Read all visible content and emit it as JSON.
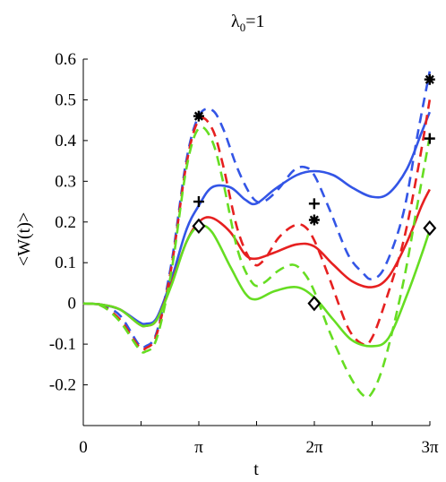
{
  "chart_data": {
    "type": "line",
    "title_symbol": "λ",
    "title_sub": "0",
    "title_rest": "=1",
    "xlabel": "t",
    "ylabel": "<W(t)>",
    "xlim": [
      0,
      9.42478
    ],
    "ylim": [
      -0.3,
      0.6
    ],
    "x_ticks": [
      {
        "value": 0,
        "label": "0"
      },
      {
        "value": 3.14159,
        "label": "π"
      },
      {
        "value": 6.28319,
        "label": "2π"
      },
      {
        "value": 9.42478,
        "label": "3π"
      }
    ],
    "x_minor_ticks": [
      1.5708,
      4.7124,
      7.854
    ],
    "y_ticks": [
      -0.2,
      -0.1,
      0,
      0.1,
      0.2,
      0.3,
      0.4,
      0.5,
      0.6
    ],
    "y_tick_labels": [
      "-0.2",
      "-0.1",
      "0",
      "0.1",
      "0.2",
      "0.3",
      "0.4",
      "0.5",
      "0.6"
    ],
    "grid": false,
    "series": [
      {
        "color": "#3355e6",
        "style": "solid",
        "x": [
          0,
          0.5,
          1.0,
          1.5,
          1.7,
          2.0,
          2.4,
          2.8,
          3.14,
          3.5,
          4.0,
          4.4,
          4.7,
          5.2,
          5.8,
          6.28,
          6.8,
          7.3,
          7.85,
          8.3,
          8.8,
          9.2,
          9.42
        ],
        "y": [
          0,
          -0.003,
          -0.015,
          -0.045,
          -0.05,
          -0.035,
          0.06,
          0.18,
          0.24,
          0.285,
          0.285,
          0.255,
          0.245,
          0.28,
          0.315,
          0.325,
          0.315,
          0.285,
          0.262,
          0.27,
          0.33,
          0.42,
          0.47
        ]
      },
      {
        "color": "#3355e6",
        "style": "dashed",
        "x": [
          0,
          0.5,
          1.0,
          1.5,
          1.7,
          2.0,
          2.4,
          2.8,
          3.14,
          3.5,
          3.8,
          4.2,
          4.6,
          4.9,
          5.3,
          5.7,
          6.0,
          6.28,
          6.7,
          7.2,
          7.6,
          7.85,
          8.2,
          8.7,
          9.1,
          9.42
        ],
        "y": [
          0,
          -0.005,
          -0.03,
          -0.1,
          -0.105,
          -0.07,
          0.1,
          0.35,
          0.46,
          0.475,
          0.43,
          0.33,
          0.26,
          0.25,
          0.28,
          0.325,
          0.335,
          0.315,
          0.23,
          0.12,
          0.075,
          0.06,
          0.09,
          0.22,
          0.42,
          0.57
        ]
      },
      {
        "color": "#e62020",
        "style": "solid",
        "x": [
          0,
          0.5,
          1.0,
          1.5,
          1.7,
          2.0,
          2.4,
          2.8,
          3.14,
          3.5,
          4.0,
          4.4,
          4.7,
          5.2,
          5.8,
          6.28,
          6.8,
          7.3,
          7.85,
          8.3,
          8.8,
          9.2,
          9.42
        ],
        "y": [
          0,
          -0.003,
          -0.015,
          -0.05,
          -0.055,
          -0.04,
          0.05,
          0.15,
          0.2,
          0.21,
          0.175,
          0.12,
          0.11,
          0.125,
          0.145,
          0.14,
          0.095,
          0.055,
          0.04,
          0.065,
          0.15,
          0.24,
          0.28
        ]
      },
      {
        "color": "#e62020",
        "style": "dashed",
        "x": [
          0,
          0.5,
          1.0,
          1.5,
          1.7,
          2.0,
          2.4,
          2.8,
          3.14,
          3.5,
          3.8,
          4.2,
          4.6,
          4.9,
          5.3,
          5.7,
          6.0,
          6.28,
          6.7,
          7.2,
          7.6,
          7.85,
          8.2,
          8.7,
          9.1,
          9.42
        ],
        "y": [
          0,
          -0.006,
          -0.04,
          -0.105,
          -0.11,
          -0.075,
          0.09,
          0.34,
          0.45,
          0.43,
          0.34,
          0.18,
          0.1,
          0.105,
          0.16,
          0.19,
          0.19,
          0.155,
          0.06,
          -0.06,
          -0.1,
          -0.085,
          0.0,
          0.15,
          0.33,
          0.5
        ]
      },
      {
        "color": "#66dd22",
        "style": "solid",
        "x": [
          0,
          0.5,
          1.0,
          1.5,
          1.7,
          2.0,
          2.4,
          2.8,
          3.14,
          3.5,
          4.0,
          4.4,
          4.7,
          5.2,
          5.8,
          6.28,
          6.8,
          7.3,
          7.85,
          8.3,
          8.8,
          9.2,
          9.42
        ],
        "y": [
          0,
          -0.003,
          -0.015,
          -0.05,
          -0.055,
          -0.04,
          0.045,
          0.15,
          0.19,
          0.175,
          0.09,
          0.025,
          0.01,
          0.03,
          0.04,
          0.015,
          -0.04,
          -0.09,
          -0.105,
          -0.085,
          0.02,
          0.12,
          0.18
        ]
      },
      {
        "color": "#66dd22",
        "style": "dashed",
        "x": [
          0,
          0.5,
          1.0,
          1.5,
          1.7,
          2.0,
          2.4,
          2.8,
          3.14,
          3.5,
          3.8,
          4.2,
          4.6,
          4.9,
          5.3,
          5.7,
          6.0,
          6.28,
          6.7,
          7.2,
          7.6,
          7.85,
          8.2,
          8.7,
          9.1,
          9.42
        ],
        "y": [
          0,
          -0.006,
          -0.045,
          -0.11,
          -0.118,
          -0.085,
          0.08,
          0.33,
          0.43,
          0.4,
          0.3,
          0.13,
          0.05,
          0.05,
          0.08,
          0.095,
          0.075,
          0.03,
          -0.07,
          -0.17,
          -0.225,
          -0.22,
          -0.14,
          0.05,
          0.25,
          0.41
        ]
      }
    ],
    "markers": [
      {
        "symbol": "asterisk",
        "x": 3.14,
        "y": 0.46
      },
      {
        "symbol": "asterisk",
        "x": 6.28,
        "y": 0.205
      },
      {
        "symbol": "asterisk",
        "x": 9.42,
        "y": 0.55
      },
      {
        "symbol": "plus",
        "x": 3.14,
        "y": 0.25
      },
      {
        "symbol": "plus",
        "x": 6.28,
        "y": 0.245
      },
      {
        "symbol": "plus",
        "x": 9.42,
        "y": 0.405
      },
      {
        "symbol": "diamond",
        "x": 3.14,
        "y": 0.19
      },
      {
        "symbol": "diamond",
        "x": 6.28,
        "y": 0.0
      },
      {
        "symbol": "diamond",
        "x": 9.42,
        "y": 0.185
      }
    ]
  }
}
